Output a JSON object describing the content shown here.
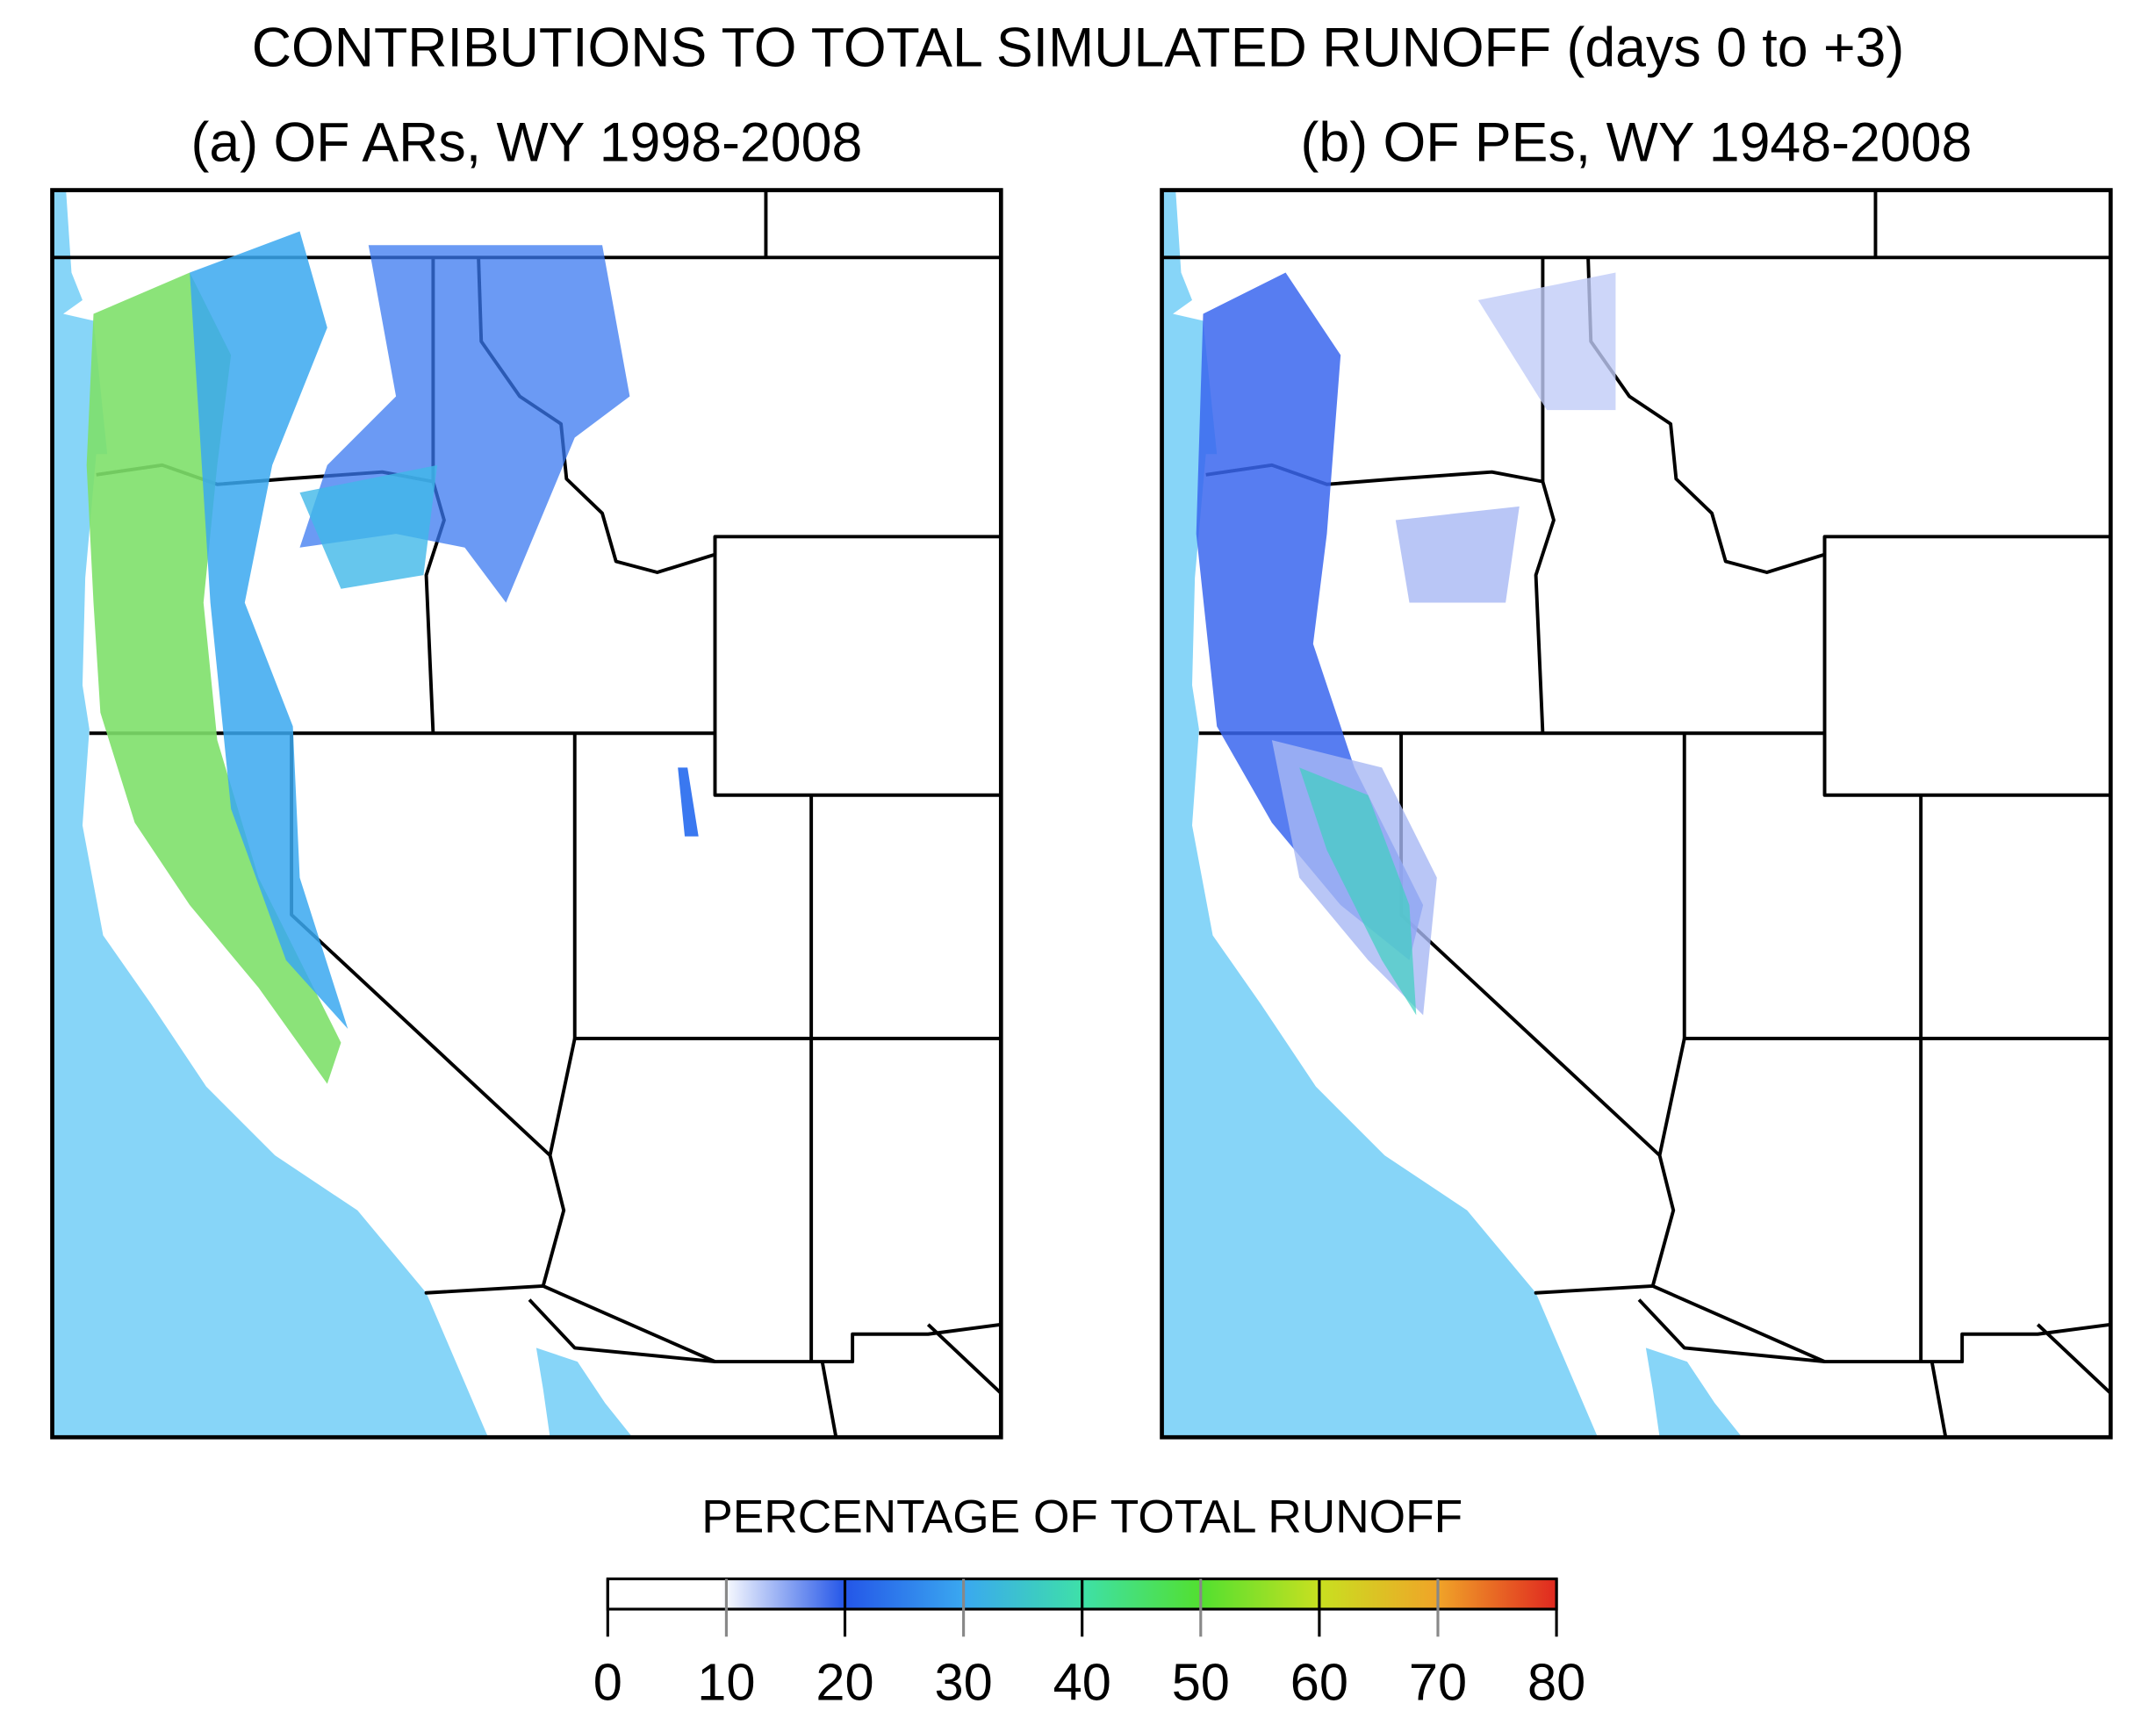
{
  "title": "CONTRIBUTIONS TO TOTAL SIMULATED RUNOFF (days 0 to +3)",
  "panels": [
    {
      "title": "(a) OF ARs, WY 1998-2008"
    },
    {
      "title": "(b) OF PEs, WY 1948-2008"
    }
  ],
  "colorbar": {
    "label": "PERCENTAGE OF TOTAL RUNOFF",
    "range": [
      0,
      80
    ],
    "ticks": [
      0,
      10,
      20,
      30,
      40,
      50,
      60,
      70,
      80
    ]
  }
}
